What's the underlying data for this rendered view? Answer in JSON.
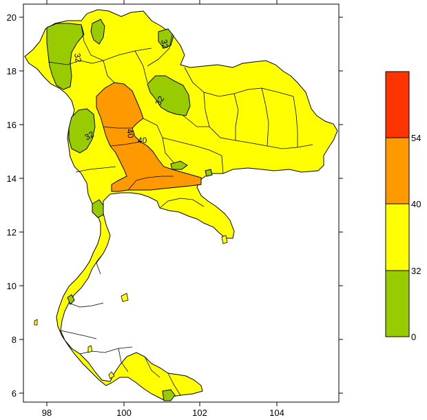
{
  "map": {
    "x_ticks": [
      "98",
      "100",
      "102",
      "104"
    ],
    "y_ticks": [
      "20",
      "18",
      "16",
      "14",
      "12",
      "10",
      "8",
      "6"
    ],
    "contour_labels": [
      "32",
      "32",
      "32",
      "40",
      "40",
      "32"
    ],
    "colors": {
      "band_0_32": "#99cc00",
      "band_32_40": "#ffff00",
      "band_40_54": "#ff9900",
      "band_54_plus": "#ff3300",
      "outline": "#000000",
      "background": "#ffffff"
    }
  },
  "legend": {
    "labels": [
      "54",
      "40",
      "32",
      "0"
    ],
    "bands": [
      {
        "range": "54+",
        "color": "#ff3300"
      },
      {
        "range": "40-54",
        "color": "#ff9900"
      },
      {
        "range": "32-40",
        "color": "#ffff00"
      },
      {
        "range": "0-32",
        "color": "#99cc00"
      }
    ]
  }
}
